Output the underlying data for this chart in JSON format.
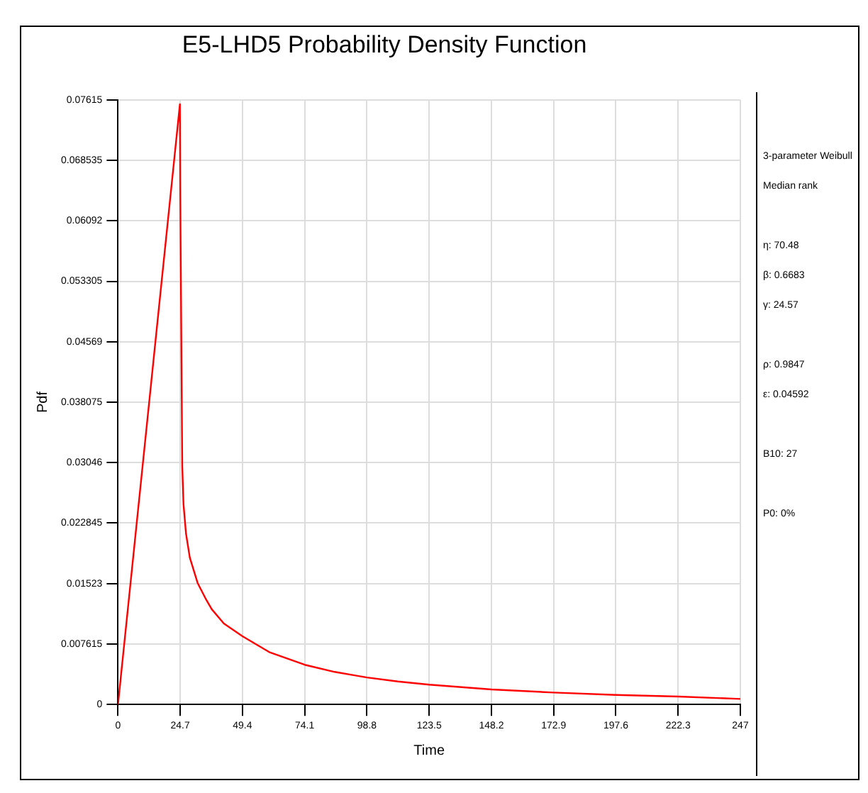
{
  "chart_data": {
    "type": "line",
    "title": "E5-LHD5 Probability Density Function",
    "xlabel": "Time",
    "ylabel": "Pdf",
    "annotations": [
      "3-parameter Weibull",
      "Median rank",
      "η: 70.48",
      "β: 0.6683",
      "γ: 24.57",
      "ρ: 0.9847",
      "ε: 0.04592",
      "B10: 27",
      "P0: 0%"
    ],
    "series": [
      {
        "color": "#ff0000",
        "x": [
          0,
          24.57,
          24.7,
          25.5,
          26,
          27,
          28.5,
          31.6,
          35,
          37.2,
          42,
          49.4,
          60,
          74.1,
          86,
          98.8,
          111,
          123.5,
          148.2,
          172.9,
          197.6,
          222.3,
          247
        ],
        "values": [
          0,
          0.0756,
          0.065,
          0.03,
          0.0252,
          0.0215,
          0.0185,
          0.0153,
          0.0132,
          0.012,
          0.0102,
          0.0086,
          0.0066,
          0.005,
          0.0041,
          0.0034,
          0.0029,
          0.0025,
          0.0019,
          0.0015,
          0.0012,
          0.001,
          0.0007
        ]
      }
    ],
    "xlim": [
      0,
      247
    ],
    "xticks": [
      0,
      24.7,
      49.4,
      74.1,
      98.8,
      123.5,
      148.2,
      172.9,
      197.6,
      222.3,
      247
    ],
    "ylim": [
      0,
      0.07615
    ],
    "yticks": [
      0,
      0.007615,
      0.01523,
      0.022845,
      0.03046,
      0.038075,
      0.04569,
      0.053305,
      0.06092,
      0.068535,
      0.07615
    ],
    "grid": true,
    "legend": false,
    "marker": "none",
    "line_style": "solid"
  }
}
